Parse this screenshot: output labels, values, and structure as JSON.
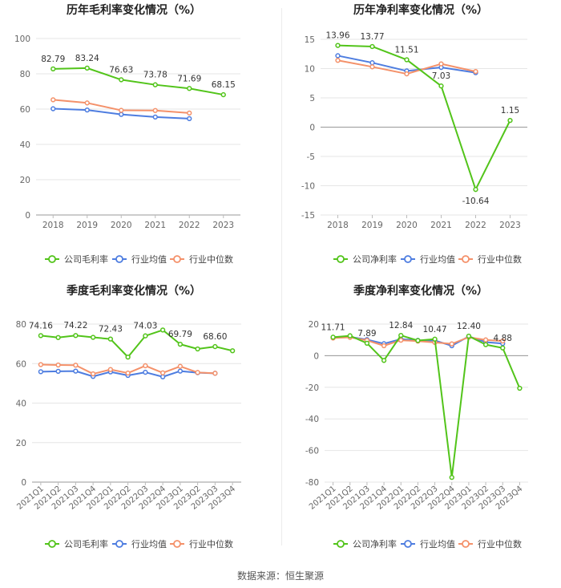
{
  "colors": {
    "company": "#52c41a",
    "industry_avg": "#4e7de0",
    "industry_median": "#f4916a"
  },
  "footer": {
    "source": "数据来源：恒生聚源"
  },
  "chart_data": [
    {
      "type": "line",
      "title": "历年毛利率变化情况（%）",
      "categories": [
        "2018",
        "2019",
        "2020",
        "2021",
        "2022",
        "2023"
      ],
      "ylim": [
        0,
        100
      ],
      "yticks": [
        0,
        20,
        40,
        60,
        80,
        100
      ],
      "grid": true,
      "legend_position": "bottom",
      "series": [
        {
          "name": "公司毛利率",
          "key": "company",
          "labels": true,
          "values": [
            82.79,
            83.24,
            76.63,
            73.78,
            71.69,
            68.15
          ],
          "label_text": [
            "82.79",
            "83.24",
            "76.63",
            "73.78",
            "71.69",
            "68.15"
          ]
        },
        {
          "name": "行业均值",
          "key": "industry_avg",
          "values": [
            60.2,
            59.5,
            57.0,
            55.5,
            54.6,
            null
          ]
        },
        {
          "name": "行业中位数",
          "key": "industry_median",
          "values": [
            65.3,
            63.5,
            59.3,
            59.2,
            57.8,
            null
          ]
        }
      ]
    },
    {
      "type": "line",
      "title": "历年净利率变化情况（%）",
      "categories": [
        "2018",
        "2019",
        "2020",
        "2021",
        "2022",
        "2023"
      ],
      "ylim": [
        -15,
        15
      ],
      "yticks": [
        -15,
        -10,
        -5,
        0,
        5,
        10,
        15
      ],
      "grid": true,
      "legend_position": "bottom",
      "series": [
        {
          "name": "公司净利率",
          "key": "company",
          "labels": true,
          "values": [
            13.96,
            13.77,
            11.51,
            7.03,
            -10.64,
            1.15
          ],
          "label_text": [
            "13.96",
            "13.77",
            "11.51",
            "7.03",
            "-10.64",
            "1.15"
          ]
        },
        {
          "name": "行业均值",
          "key": "industry_avg",
          "values": [
            12.2,
            11.0,
            9.6,
            10.2,
            9.3,
            null
          ]
        },
        {
          "name": "行业中位数",
          "key": "industry_median",
          "values": [
            11.4,
            10.3,
            9.1,
            10.8,
            9.5,
            null
          ]
        }
      ]
    },
    {
      "type": "line",
      "title": "季度毛利率变化情况（%）",
      "categories": [
        "2021Q1",
        "2021Q2",
        "2021Q3",
        "2021Q4",
        "2022Q1",
        "2022Q2",
        "2022Q3",
        "2022Q4",
        "2023Q1",
        "2023Q2",
        "2023Q3",
        "2023Q4"
      ],
      "ylim": [
        0,
        80
      ],
      "yticks": [
        0,
        20,
        40,
        60,
        80
      ],
      "grid": true,
      "legend_position": "bottom",
      "series": [
        {
          "name": "公司毛利率",
          "key": "company",
          "labels": true,
          "values": [
            74.16,
            73.2,
            74.22,
            73.3,
            72.43,
            63.3,
            74.03,
            77.0,
            69.79,
            67.4,
            68.6,
            66.5
          ],
          "label_text": [
            "74.16",
            "",
            "74.22",
            "",
            "72.43",
            "",
            "74.03",
            "",
            "69.79",
            "",
            "68.60",
            ""
          ]
        },
        {
          "name": "行业均值",
          "key": "industry_avg",
          "values": [
            55.9,
            56.1,
            56.2,
            53.5,
            55.8,
            54.0,
            55.6,
            53.3,
            56.2,
            55.4,
            55.1,
            null
          ]
        },
        {
          "name": "行业中位数",
          "key": "industry_median",
          "values": [
            59.5,
            59.3,
            59.2,
            54.8,
            57.0,
            55.2,
            58.9,
            55.3,
            58.6,
            55.5,
            55.1,
            null
          ]
        }
      ]
    },
    {
      "type": "line",
      "title": "季度净利率变化情况（%）",
      "categories": [
        "2021Q1",
        "2021Q2",
        "2021Q3",
        "2021Q4",
        "2022Q1",
        "2022Q2",
        "2022Q3",
        "2022Q4",
        "2023Q1",
        "2023Q2",
        "2023Q3",
        "2023Q4"
      ],
      "ylim": [
        -80,
        20
      ],
      "yticks": [
        -80,
        -60,
        -40,
        -20,
        0,
        20
      ],
      "grid": true,
      "legend_position": "bottom",
      "series": [
        {
          "name": "公司净利率",
          "key": "company",
          "labels": true,
          "values": [
            11.71,
            12.6,
            7.89,
            -3.0,
            12.84,
            9.6,
            10.47,
            -77.0,
            12.4,
            7.0,
            4.88,
            -20.6
          ],
          "label_text": [
            "11.71",
            "",
            "7.89",
            "",
            "12.84",
            "",
            "10.47",
            "",
            "12.40",
            "",
            "4.88",
            ""
          ]
        },
        {
          "name": "行业均值",
          "key": "industry_avg",
          "values": [
            11.5,
            11.9,
            10.2,
            7.6,
            10.5,
            9.7,
            9.6,
            6.3,
            12.2,
            8.6,
            7.7,
            null
          ]
        },
        {
          "name": "行业中位数",
          "key": "industry_median",
          "values": [
            11.2,
            11.6,
            9.7,
            6.3,
            9.8,
            9.2,
            8.4,
            7.5,
            11.7,
            10.0,
            9.3,
            null
          ]
        }
      ]
    }
  ]
}
